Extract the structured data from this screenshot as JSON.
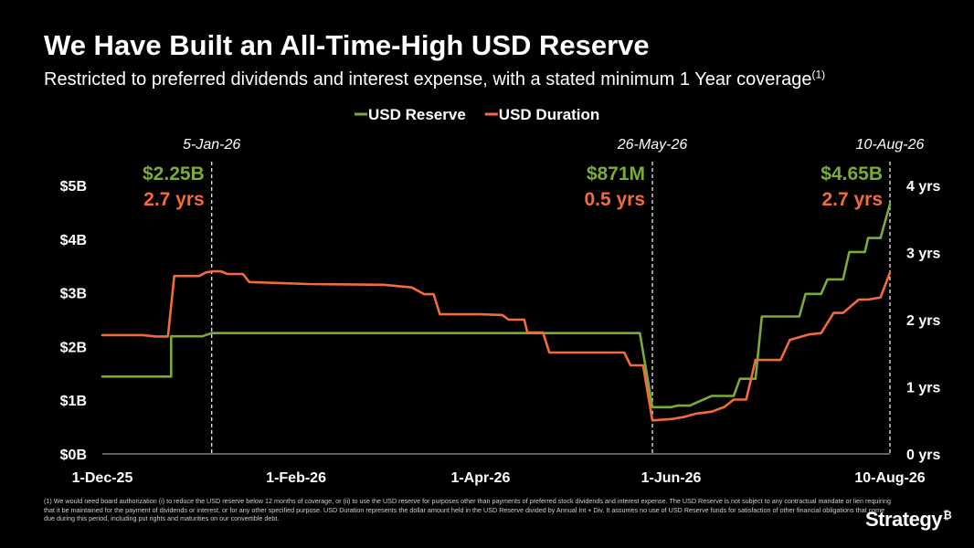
{
  "title": "We Have Built an All-Time-High USD Reserve",
  "subtitle": "Restricted to preferred dividends and interest expense, with a stated minimum 1 Year coverage",
  "subtitle_footnote_mark": "(1)",
  "footnote": "(1) We would need board authorization (i) to reduce the USD reserve below 12 months of coverage, or (ii) to use the USD reserve for purposes other than payments of preferred stock dividends and interest expense. The USD Reserve is not subject to any contractual mandate or lien requiring that it be maintained for the payment of dividends or interest, or for any other specified purpose. USD Duration represents the dollar amount held in the USD Reserve divided by Annual Int + Div. It assumes no use of USD Reserve funds for satisfaction of other financial obligations that come due during this period, including put rights and maturities on our convertible debt.",
  "logo": {
    "text": "Strategy",
    "mark": "₿"
  },
  "colors": {
    "reserve": "#7aab35",
    "duration": "#f26b3a",
    "background": "#000000",
    "text": "#ffffff"
  },
  "chart_data": {
    "type": "line",
    "x_domain": [
      "2025-12-01",
      "2026-08-10"
    ],
    "x_ticks": [
      {
        "label": "1-Dec-25",
        "date": "2025-12-01"
      },
      {
        "label": "1-Feb-26",
        "date": "2026-02-01"
      },
      {
        "label": "1-Apr-26",
        "date": "2026-04-01"
      },
      {
        "label": "1-Jun-26",
        "date": "2026-06-01"
      },
      {
        "label": "10-Aug-26",
        "date": "2026-08-10"
      }
    ],
    "y_left": {
      "ylim": [
        0,
        5
      ],
      "ticks": [
        {
          "value": 0,
          "label": "$0B"
        },
        {
          "value": 1,
          "label": "$1B"
        },
        {
          "value": 2,
          "label": "$2B"
        },
        {
          "value": 3,
          "label": "$3B"
        },
        {
          "value": 4,
          "label": "$4B"
        },
        {
          "value": 5,
          "label": "$5B"
        }
      ]
    },
    "y_right": {
      "ylim": [
        0,
        4
      ],
      "ticks": [
        {
          "value": 0,
          "label": "0 yrs"
        },
        {
          "value": 1,
          "label": "1 yrs"
        },
        {
          "value": 2,
          "label": "2 yrs"
        },
        {
          "value": 3,
          "label": "3 yrs"
        },
        {
          "value": 4,
          "label": "4 yrs"
        }
      ]
    },
    "legend": {
      "placement": "top-center",
      "items": [
        {
          "label": "USD Reserve",
          "key": "reserve"
        },
        {
          "label": "USD Duration",
          "key": "duration"
        }
      ]
    },
    "series": [
      {
        "name": "USD Reserve",
        "axis": "left",
        "key": "reserve",
        "points": [
          [
            "2025-12-01",
            1.44
          ],
          [
            "2025-12-23",
            1.44
          ],
          [
            "2025-12-23",
            2.19
          ],
          [
            "2025-12-29",
            2.19
          ],
          [
            "2026-01-02",
            2.19
          ],
          [
            "2026-01-05",
            2.25
          ],
          [
            "2026-05-22",
            2.25
          ],
          [
            "2026-05-26",
            0.87
          ],
          [
            "2026-06-01",
            0.87
          ],
          [
            "2026-06-03",
            0.9
          ],
          [
            "2026-06-07",
            0.9
          ],
          [
            "2026-06-10",
            0.98
          ],
          [
            "2026-06-14",
            1.08
          ],
          [
            "2026-06-21",
            1.08
          ],
          [
            "2026-06-23",
            1.4
          ],
          [
            "2026-06-28",
            1.4
          ],
          [
            "2026-06-30",
            2.56
          ],
          [
            "2026-07-12",
            2.56
          ],
          [
            "2026-07-14",
            2.98
          ],
          [
            "2026-07-19",
            2.98
          ],
          [
            "2026-07-21",
            3.25
          ],
          [
            "2026-07-26",
            3.25
          ],
          [
            "2026-07-28",
            3.76
          ],
          [
            "2026-08-02",
            3.76
          ],
          [
            "2026-08-03",
            4.02
          ],
          [
            "2026-08-07",
            4.02
          ],
          [
            "2026-08-10",
            4.65
          ]
        ]
      },
      {
        "name": "USD Duration",
        "axis": "right",
        "key": "duration",
        "points": [
          [
            "2025-12-01",
            1.77
          ],
          [
            "2025-12-14",
            1.77
          ],
          [
            "2025-12-18",
            1.75
          ],
          [
            "2025-12-22",
            1.75
          ],
          [
            "2025-12-24",
            2.65
          ],
          [
            "2026-01-01",
            2.65
          ],
          [
            "2026-01-03",
            2.7
          ],
          [
            "2026-01-05",
            2.72
          ],
          [
            "2026-01-08",
            2.72
          ],
          [
            "2026-01-10",
            2.68
          ],
          [
            "2026-01-15",
            2.68
          ],
          [
            "2026-01-17",
            2.56
          ],
          [
            "2026-02-05",
            2.53
          ],
          [
            "2026-03-01",
            2.52
          ],
          [
            "2026-03-10",
            2.48
          ],
          [
            "2026-03-14",
            2.38
          ],
          [
            "2026-03-17",
            2.38
          ],
          [
            "2026-03-19",
            2.08
          ],
          [
            "2026-04-01",
            2.08
          ],
          [
            "2026-04-08",
            2.07
          ],
          [
            "2026-04-10",
            2.0
          ],
          [
            "2026-04-15",
            2.0
          ],
          [
            "2026-04-16",
            1.81
          ],
          [
            "2026-04-21",
            1.81
          ],
          [
            "2026-04-23",
            1.51
          ],
          [
            "2026-05-17",
            1.51
          ],
          [
            "2026-05-19",
            1.32
          ],
          [
            "2026-05-23",
            1.32
          ],
          [
            "2026-05-26",
            0.5
          ],
          [
            "2026-06-01",
            0.52
          ],
          [
            "2026-06-05",
            0.55
          ],
          [
            "2026-06-09",
            0.6
          ],
          [
            "2026-06-14",
            0.63
          ],
          [
            "2026-06-18",
            0.7
          ],
          [
            "2026-06-21",
            0.81
          ],
          [
            "2026-06-25",
            0.81
          ],
          [
            "2026-06-28",
            1.4
          ],
          [
            "2026-07-06",
            1.4
          ],
          [
            "2026-07-09",
            1.7
          ],
          [
            "2026-07-15",
            1.78
          ],
          [
            "2026-07-19",
            1.8
          ],
          [
            "2026-07-23",
            2.1
          ],
          [
            "2026-07-26",
            2.1
          ],
          [
            "2026-07-31",
            2.3
          ],
          [
            "2026-08-03",
            2.3
          ],
          [
            "2026-08-07",
            2.33
          ],
          [
            "2026-08-10",
            2.7
          ]
        ]
      }
    ],
    "annotations": [
      {
        "date_label": "5-Jan-26",
        "date": "2026-01-05",
        "reserve_label": "$2.25B",
        "duration_label": "2.7 yrs",
        "align": "end"
      },
      {
        "date_label": "26-May-26",
        "date": "2026-05-26",
        "reserve_label": "$871M",
        "duration_label": "0.5 yrs",
        "align": "end"
      },
      {
        "date_label": "10-Aug-26",
        "date": "2026-08-10",
        "reserve_label": "$4.65B",
        "duration_label": "2.7 yrs",
        "align": "end"
      }
    ]
  }
}
